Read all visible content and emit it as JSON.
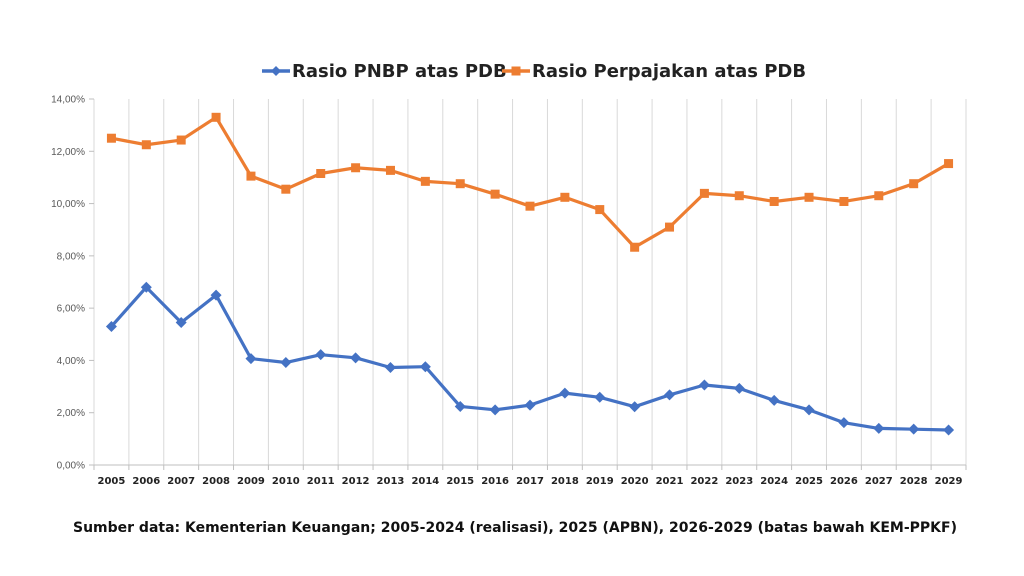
{
  "chart_data": {
    "type": "line",
    "categories": [
      "2005",
      "2006",
      "2007",
      "2008",
      "2009",
      "2010",
      "2011",
      "2012",
      "2013",
      "2014",
      "2015",
      "2016",
      "2017",
      "2018",
      "2019",
      "2020",
      "2021",
      "2022",
      "2023",
      "2024",
      "2025",
      "2026",
      "2027",
      "2028",
      "2029"
    ],
    "series": [
      {
        "name": "Rasio PNBP atas PDB",
        "color": "#4472C4",
        "marker": "diamond",
        "values": [
          5.3,
          6.8,
          5.45,
          6.5,
          4.07,
          3.92,
          4.22,
          4.1,
          3.73,
          3.76,
          2.24,
          2.11,
          2.29,
          2.75,
          2.59,
          2.23,
          2.68,
          3.06,
          2.93,
          2.47,
          2.11,
          1.62,
          1.4,
          1.37,
          1.34
        ]
      },
      {
        "name": "Rasio Perpajakan atas PDB",
        "color": "#ED7D31",
        "marker": "square",
        "values": [
          12.5,
          12.25,
          12.43,
          13.3,
          11.05,
          10.55,
          11.15,
          11.37,
          11.27,
          10.85,
          10.76,
          10.36,
          9.9,
          10.24,
          9.77,
          8.33,
          9.1,
          10.39,
          10.3,
          10.08,
          10.24,
          10.08,
          10.3,
          10.76,
          11.53
        ]
      }
    ],
    "yticks": [
      "0,00%",
      "2,00%",
      "4,00%",
      "6,00%",
      "8,00%",
      "10,00%",
      "12,00%",
      "14,00%"
    ],
    "ylim": [
      0,
      14
    ],
    "grid": "vertical",
    "legend_position": "top",
    "source_note": "Sumber data: Kementerian Keuangan; 2005-2024 (realisasi), 2025 (APBN), 2026-2029 (batas bawah KEM-PPKF)"
  }
}
